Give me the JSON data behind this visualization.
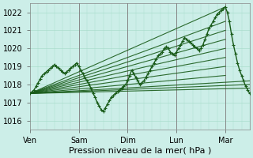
{
  "title": "Pression niveau de la mer( hPa )",
  "ylabel_vals": [
    1016,
    1017,
    1018,
    1019,
    1020,
    1021,
    1022
  ],
  "ylim": [
    1015.5,
    1022.5
  ],
  "xlim": [
    0,
    108
  ],
  "xtick_positions": [
    0,
    24,
    48,
    72,
    96
  ],
  "xtick_labels": [
    "Ven",
    "Sam",
    "Dim",
    "Lun",
    "Mar"
  ],
  "bg_color": "#cceee8",
  "grid_color": "#aaddcc",
  "line_color": "#1a5c1a",
  "fig_bg": "#cceee8",
  "main_line_lw": 1.0,
  "fan_line_lw": 0.8,
  "xlabel_fontsize": 8,
  "ylabel_fontsize": 7,
  "tick_fontsize": 7,
  "fan_lines": [
    [
      [
        0,
        1017.5
      ],
      [
        96,
        1022.3
      ]
    ],
    [
      [
        0,
        1017.5
      ],
      [
        96,
        1021.5
      ]
    ],
    [
      [
        0,
        1017.5
      ],
      [
        96,
        1021.0
      ]
    ],
    [
      [
        0,
        1017.5
      ],
      [
        96,
        1020.5
      ]
    ],
    [
      [
        0,
        1017.5
      ],
      [
        96,
        1020.0
      ]
    ],
    [
      [
        0,
        1017.5
      ],
      [
        96,
        1019.5
      ]
    ],
    [
      [
        0,
        1017.5
      ],
      [
        96,
        1019.0
      ]
    ],
    [
      [
        0,
        1017.5
      ],
      [
        96,
        1018.5
      ]
    ],
    [
      [
        0,
        1017.5
      ],
      [
        108,
        1017.8
      ]
    ],
    [
      [
        0,
        1017.5
      ],
      [
        108,
        1018.0
      ]
    ],
    [
      [
        0,
        1017.5
      ],
      [
        108,
        1018.2
      ]
    ]
  ],
  "main_x": [
    0,
    1,
    2,
    3,
    4,
    5,
    6,
    7,
    8,
    9,
    10,
    11,
    12,
    13,
    14,
    15,
    16,
    17,
    18,
    19,
    20,
    21,
    22,
    23,
    24,
    25,
    26,
    27,
    28,
    29,
    30,
    31,
    32,
    33,
    34,
    35,
    36,
    37,
    38,
    39,
    40,
    41,
    42,
    43,
    44,
    45,
    46,
    47,
    48,
    49,
    50,
    51,
    52,
    53,
    54,
    55,
    56,
    57,
    58,
    59,
    60,
    61,
    62,
    63,
    64,
    65,
    66,
    67,
    68,
    69,
    70,
    71,
    72,
    73,
    74,
    75,
    76,
    77,
    78,
    79,
    80,
    81,
    82,
    83,
    84,
    85,
    86,
    87,
    88,
    89,
    90,
    91,
    92,
    93,
    94,
    95,
    96,
    97,
    98,
    99,
    100,
    101,
    102,
    103,
    104,
    105,
    106,
    107,
    108
  ],
  "main_y": [
    1017.5,
    1017.6,
    1017.7,
    1017.9,
    1018.1,
    1018.3,
    1018.5,
    1018.6,
    1018.7,
    1018.8,
    1018.9,
    1019.0,
    1019.1,
    1019.0,
    1018.9,
    1018.8,
    1018.7,
    1018.6,
    1018.7,
    1018.8,
    1018.9,
    1019.0,
    1019.1,
    1019.2,
    1019.0,
    1018.8,
    1018.6,
    1018.4,
    1018.2,
    1018.0,
    1017.8,
    1017.5,
    1017.3,
    1017.0,
    1016.8,
    1016.6,
    1016.5,
    1016.7,
    1016.9,
    1017.1,
    1017.3,
    1017.4,
    1017.5,
    1017.6,
    1017.7,
    1017.8,
    1017.9,
    1018.0,
    1018.2,
    1018.5,
    1018.8,
    1018.6,
    1018.4,
    1018.2,
    1018.0,
    1018.1,
    1018.2,
    1018.4,
    1018.6,
    1018.8,
    1019.0,
    1019.2,
    1019.4,
    1019.6,
    1019.7,
    1019.8,
    1020.0,
    1020.1,
    1020.0,
    1019.8,
    1019.7,
    1019.6,
    1019.8,
    1020.0,
    1020.2,
    1020.4,
    1020.6,
    1020.5,
    1020.4,
    1020.3,
    1020.2,
    1020.1,
    1020.0,
    1019.9,
    1020.0,
    1020.2,
    1020.5,
    1020.8,
    1021.1,
    1021.3,
    1021.5,
    1021.7,
    1021.9,
    1022.0,
    1022.1,
    1022.2,
    1022.3,
    1022.0,
    1021.5,
    1020.8,
    1020.2,
    1019.7,
    1019.2,
    1018.8,
    1018.5,
    1018.2,
    1017.9,
    1017.7,
    1017.5
  ]
}
